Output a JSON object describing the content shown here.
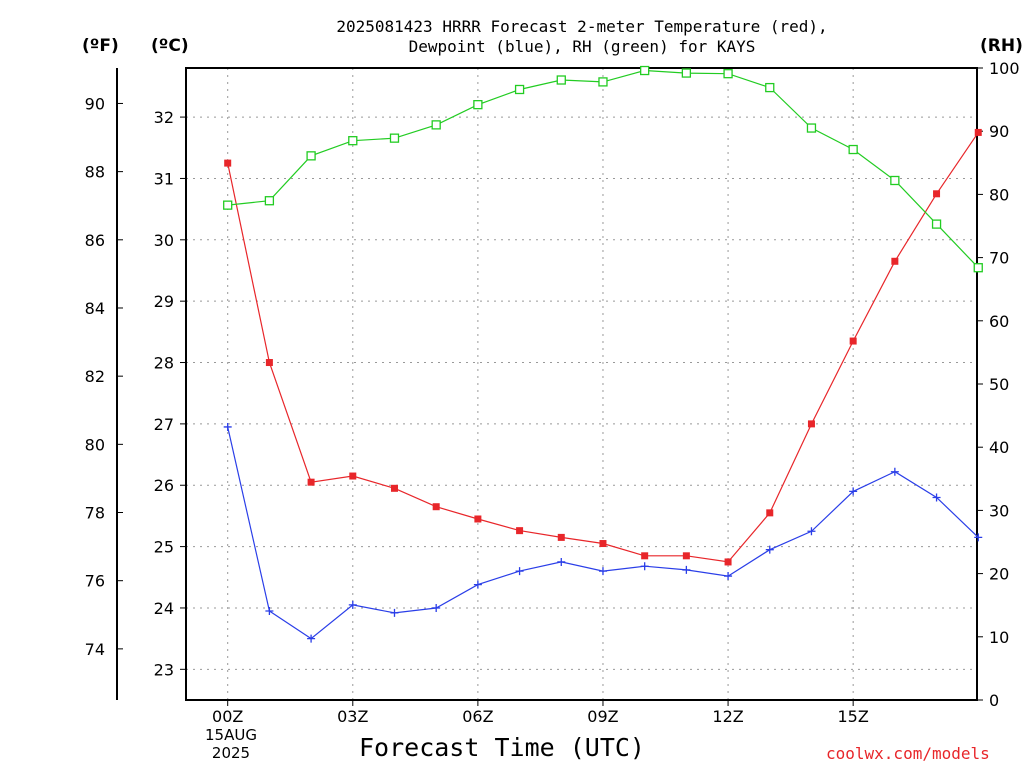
{
  "title_line1": "2025081423 HRRR Forecast 2-meter Temperature (red),",
  "title_line2": "Dewpoint (blue), RH (green) for KAYS",
  "unit_f": "(ºF)",
  "unit_c": "(ºC)",
  "unit_rh": "(RH)",
  "x_axis_label": "Forecast Time (UTC)",
  "date_line1": "15AUG",
  "date_line2": "2025",
  "credit": "coolwx.com/models",
  "chart_data": {
    "type": "line",
    "title": "2025081423 HRRR Forecast 2-meter Temperature (red), Dewpoint (blue), RH (green) for KAYS",
    "xlabel": "Forecast Time (UTC)",
    "x_ticks": [
      "00Z",
      "03Z",
      "06Z",
      "09Z",
      "12Z",
      "15Z"
    ],
    "x": [
      "23Z",
      "00Z",
      "01Z",
      "02Z",
      "03Z",
      "04Z",
      "05Z",
      "06Z",
      "07Z",
      "08Z",
      "09Z",
      "10Z",
      "11Z",
      "12Z",
      "13Z",
      "14Z",
      "15Z",
      "16Z",
      "17Z"
    ],
    "left_axis_f": {
      "label": "(ºF)",
      "ticks": [
        74,
        76,
        78,
        80,
        82,
        84,
        86,
        88,
        90
      ]
    },
    "left_axis_c": {
      "label": "(ºC)",
      "ylim": [
        22.5,
        32.8
      ],
      "ticks": [
        23,
        24,
        25,
        26,
        27,
        28,
        29,
        30,
        31,
        32
      ]
    },
    "right_axis_rh": {
      "label": "(RH)",
      "ylim": [
        0,
        100
      ],
      "ticks": [
        0,
        10,
        20,
        30,
        40,
        50,
        60,
        70,
        80,
        90,
        100
      ]
    },
    "grid": true,
    "series": [
      {
        "name": "Temperature",
        "color": "#e8262a",
        "marker": "filled-square",
        "axis": "celsius",
        "values": [
          31.25,
          28.0,
          26.05,
          26.15,
          25.95,
          25.65,
          25.45,
          25.26,
          25.15,
          25.05,
          24.85,
          24.85,
          24.75,
          25.55,
          27.0,
          28.35,
          29.65,
          30.75,
          31.75
        ]
      },
      {
        "name": "Dewpoint",
        "color": "#2a3ee8",
        "marker": "plus",
        "axis": "celsius",
        "values": [
          26.95,
          23.95,
          23.5,
          24.05,
          23.92,
          24.0,
          24.38,
          24.6,
          24.75,
          24.6,
          24.68,
          24.62,
          24.52,
          24.95,
          25.25,
          25.9,
          26.22,
          25.8,
          25.15
        ]
      },
      {
        "name": "RH",
        "color": "#22cc22",
        "marker": "open-square",
        "axis": "rh",
        "values": [
          78.3,
          79.0,
          86.1,
          88.5,
          88.9,
          91.0,
          94.2,
          96.6,
          98.1,
          97.8,
          99.6,
          99.2,
          99.1,
          96.9,
          90.5,
          87.1,
          82.2,
          75.3,
          68.4
        ]
      }
    ]
  }
}
